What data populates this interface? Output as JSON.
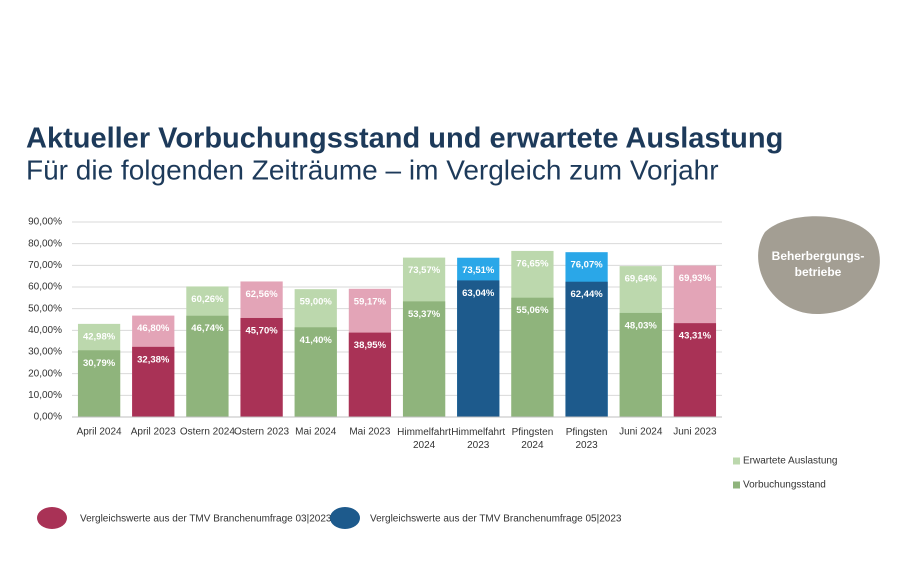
{
  "chart_data": {
    "type": "bar",
    "title": "Aktueller Vorbuchungsstand und erwartete Auslastung",
    "subtitle": "Für die folgenden Zeiträume – im Vergleich zum Vorjahr",
    "categories": [
      "April 2024",
      "April 2023",
      "Ostern 2024",
      "Ostern 2023",
      "Mai 2024",
      "Mai 2023",
      "Himmelfahrt 2024",
      "Himmelfahrt 2023",
      "Pfingsten 2024",
      "Pfingsten 2023",
      "Juni 2024",
      "Juni 2023"
    ],
    "series": [
      {
        "name": "Erwartete Auslastung",
        "color": "#bcd8ad",
        "colors": [
          "#bcd8ad",
          "#e3a4b7",
          "#bcd8ad",
          "#e3a4b7",
          "#bcd8ad",
          "#e3a4b7",
          "#bcd8ad",
          "#2aa7e8",
          "#bcd8ad",
          "#2aa7e8",
          "#bcd8ad",
          "#e3a4b7"
        ],
        "values": [
          42.98,
          46.8,
          60.26,
          62.56,
          59.0,
          59.17,
          73.57,
          73.51,
          76.65,
          76.07,
          69.64,
          69.93
        ],
        "value_labels": [
          "42,98%",
          "46,80%",
          "60,26%",
          "62,56%",
          "59,00%",
          "59,17%",
          "73,57%",
          "73,51%",
          "76,65%",
          "76,07%",
          "69,64%",
          "69,93%"
        ]
      },
      {
        "name": "Vorbuchungsstand",
        "color": "#8fb47c",
        "colors": [
          "#8fb47c",
          "#a93256",
          "#8fb47c",
          "#a93256",
          "#8fb47c",
          "#a93256",
          "#8fb47c",
          "#1d5a8c",
          "#8fb47c",
          "#1d5a8c",
          "#8fb47c",
          "#a93256"
        ],
        "values": [
          30.79,
          32.38,
          46.74,
          45.7,
          41.4,
          38.95,
          53.37,
          63.04,
          55.06,
          62.44,
          48.03,
          43.31
        ],
        "value_labels": [
          "30,79%",
          "32,38%",
          "46,74%",
          "45,70%",
          "41,40%",
          "38,95%",
          "53,37%",
          "63,04%",
          "55,06%",
          "62,44%",
          "48,03%",
          "43,31%"
        ]
      }
    ],
    "ylim": [
      0,
      90
    ],
    "yticks": [
      {
        "value": 0,
        "label": "0,00%"
      },
      {
        "value": 10,
        "label": "10,00%"
      },
      {
        "value": 20,
        "label": "20,00%"
      },
      {
        "value": 30,
        "label": "30,00%"
      },
      {
        "value": 40,
        "label": "40,00%"
      },
      {
        "value": 50,
        "label": "50,00%"
      },
      {
        "value": 60,
        "label": "60,00%"
      },
      {
        "value": 70,
        "label": "70,00%"
      },
      {
        "value": 80,
        "label": "80,00%"
      },
      {
        "value": 90,
        "label": "90,00%"
      }
    ],
    "grid": true,
    "legend": "right",
    "badge": "Beherbergungs- betriebe",
    "notes": [
      {
        "text": "Vergleichswerte aus der TMV Branchenumfrage 03|2023",
        "color": "#a93256"
      },
      {
        "text": "Vergleichswerte aus der TMV Branchenumfrage 05|2023",
        "color": "#1d5a8c"
      }
    ]
  }
}
